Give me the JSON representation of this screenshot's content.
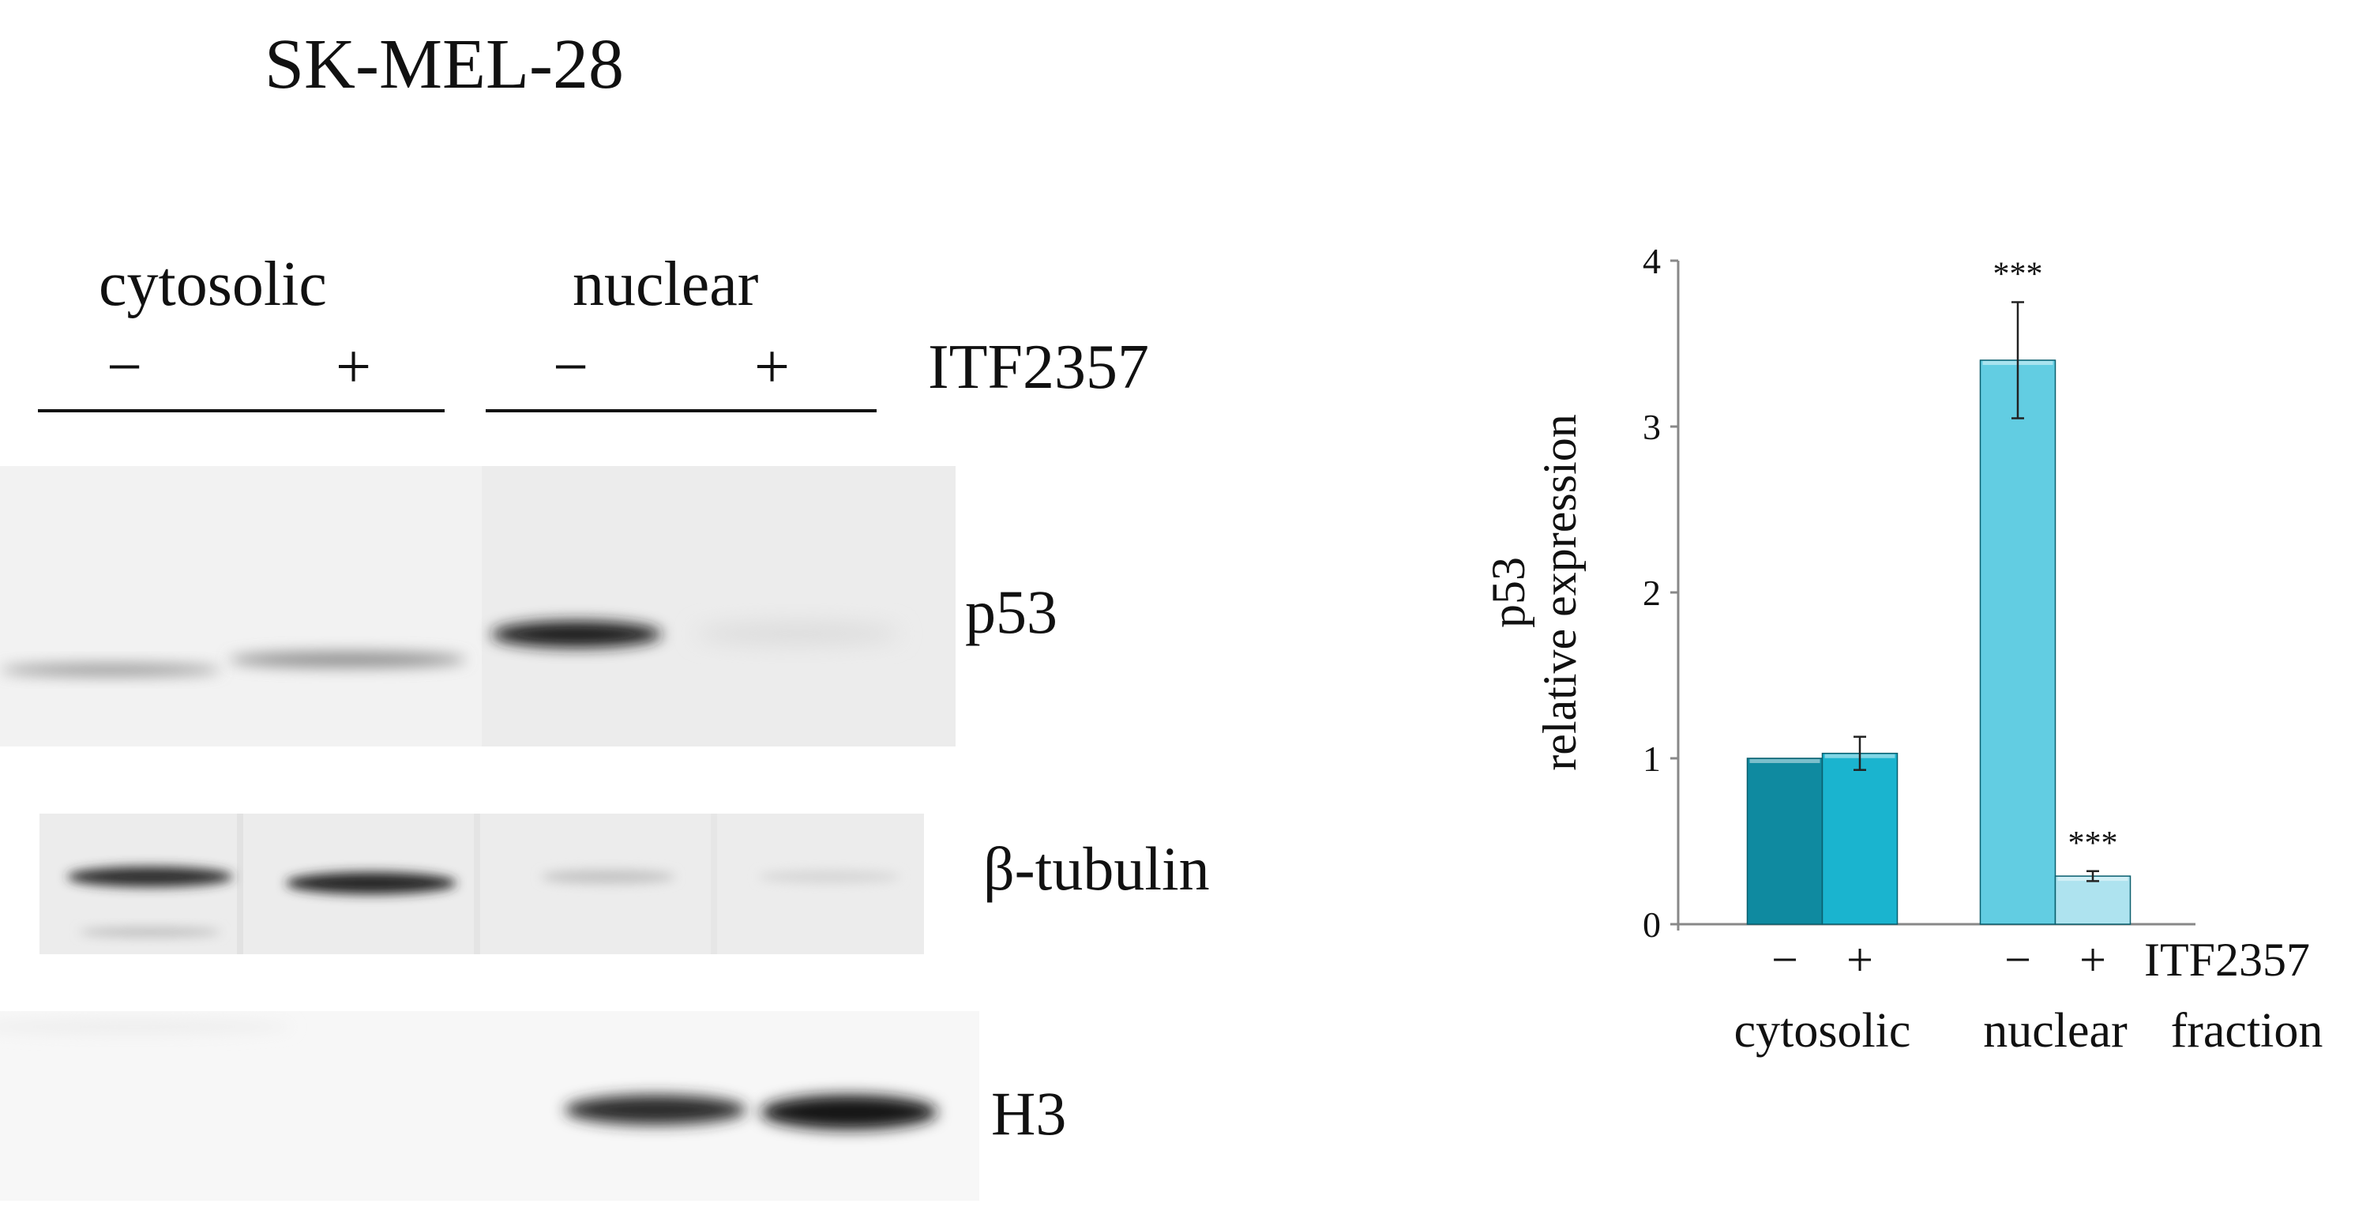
{
  "figure": {
    "cell_line": "SK-MEL-28",
    "groups": [
      "cytosolic",
      "nuclear"
    ],
    "treatment_signs": [
      "−",
      "+",
      "−",
      "+"
    ],
    "treatment_label": "ITF2357",
    "bands": [
      "p53",
      "β-tubulin",
      "H3"
    ]
  },
  "chart_data": {
    "type": "bar",
    "ylabel_top": "p53",
    "ylabel": "relative expression",
    "ylim": [
      0,
      4
    ],
    "yticks": [
      "0",
      "1",
      "2",
      "3",
      "4"
    ],
    "categories": [
      "−",
      "+",
      "−",
      "+"
    ],
    "category_label": "ITF2357",
    "groups": [
      "cytosolic",
      "nuclear"
    ],
    "group_axis_label": "fraction",
    "values": [
      1.0,
      1.03,
      3.4,
      0.29
    ],
    "errors": [
      0,
      0.1,
      0.35,
      0.03
    ],
    "significance": [
      "",
      "",
      "***",
      "***"
    ],
    "colors": [
      "#0f8aa0",
      "#1ab4cf",
      "#62cde2",
      "#aee3ef"
    ],
    "grid": false
  }
}
